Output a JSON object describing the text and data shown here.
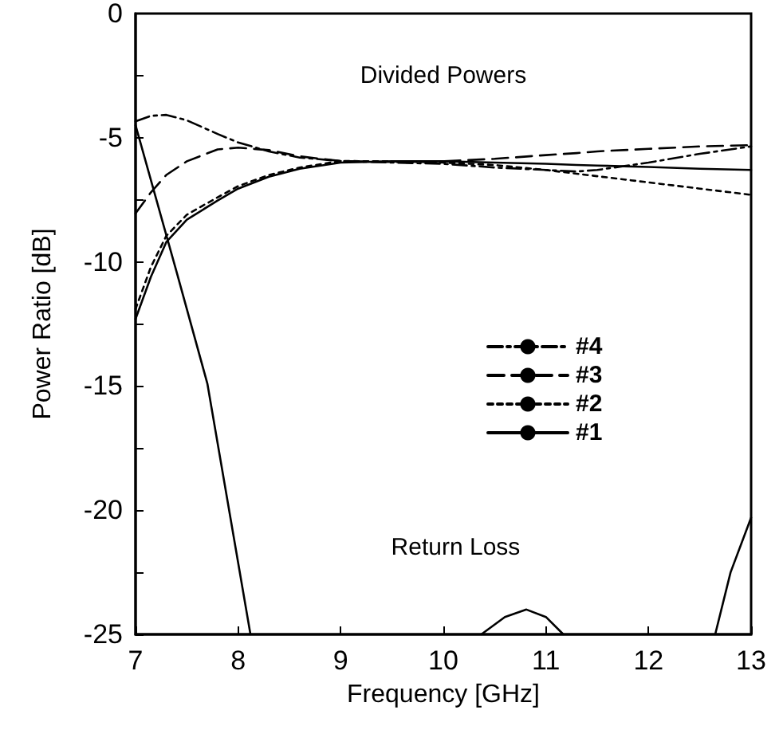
{
  "chart_data": {
    "type": "line",
    "xlabel": "Frequency [GHz]",
    "ylabel": "Power Ratio [dB]",
    "x": [
      7,
      7.15,
      7.3,
      7.5,
      7.8,
      8.0,
      8.3,
      8.6,
      9,
      9.5,
      10,
      10.5,
      11,
      11.3,
      11.5,
      12,
      12.5,
      13
    ],
    "series": [
      {
        "name": "#4",
        "color": "#000000",
        "line_style": "dashdot",
        "values": [
          -4.34,
          -4.12,
          -4.08,
          -4.3,
          -4.85,
          -5.19,
          -5.55,
          -5.8,
          -5.94,
          -6.0,
          -6.05,
          -6.2,
          -6.3,
          -6.36,
          -6.3,
          -6.0,
          -5.65,
          -5.35
        ]
      },
      {
        "name": "#3",
        "color": "#000000",
        "line_style": "dashed",
        "values": [
          -8.05,
          -7.2,
          -6.5,
          -5.95,
          -5.47,
          -5.4,
          -5.5,
          -5.75,
          -5.94,
          -5.98,
          -5.95,
          -5.85,
          -5.7,
          -5.62,
          -5.55,
          -5.45,
          -5.35,
          -5.3
        ]
      },
      {
        "name": "#2",
        "color": "#000000",
        "line_style": "dotted",
        "values": [
          -11.9,
          -10.2,
          -8.95,
          -8.1,
          -7.4,
          -6.95,
          -6.5,
          -6.2,
          -5.94,
          -5.95,
          -6.0,
          -6.1,
          -6.3,
          -6.45,
          -6.55,
          -6.8,
          -7.05,
          -7.3
        ]
      },
      {
        "name": "#1",
        "color": "#000000",
        "line_style": "solid",
        "values": [
          -12.3,
          -10.6,
          -9.2,
          -8.3,
          -7.53,
          -7.05,
          -6.57,
          -6.25,
          -6.0,
          -5.95,
          -5.95,
          -6.0,
          -6.05,
          -6.1,
          -6.12,
          -6.18,
          -6.25,
          -6.3
        ]
      },
      {
        "color": "#000000",
        "line_style": "solid",
        "x": [
          7,
          7.4,
          7.7,
          8.12,
          9.5,
          10.37,
          10.6,
          10.81,
          11.0,
          11.17,
          12,
          12.65,
          12.8,
          13
        ],
        "values": [
          -4.5,
          -10.4,
          -14.9,
          -25,
          null,
          -25,
          -24.3,
          -24.0,
          -24.3,
          -25,
          null,
          -25,
          -22.5,
          -20.3
        ]
      }
    ],
    "xlim": [
      7,
      13
    ],
    "xticks": [
      7,
      8,
      9,
      10,
      11,
      12,
      13
    ],
    "ylim": [
      -25,
      0
    ],
    "yticks": [
      -25,
      {
        "value": -22.5,
        "label": null
      },
      -20,
      {
        "value": -17.5,
        "label": null
      },
      -15,
      {
        "value": -12.5,
        "label": null
      },
      -10,
      {
        "value": -7.5,
        "label": null
      },
      -5,
      {
        "value": -2.5,
        "label": null
      },
      0
    ],
    "annotations": [
      "Divided Powers",
      "Return Loss"
    ],
    "legend": "right",
    "marker": "none",
    "grid": false
  }
}
